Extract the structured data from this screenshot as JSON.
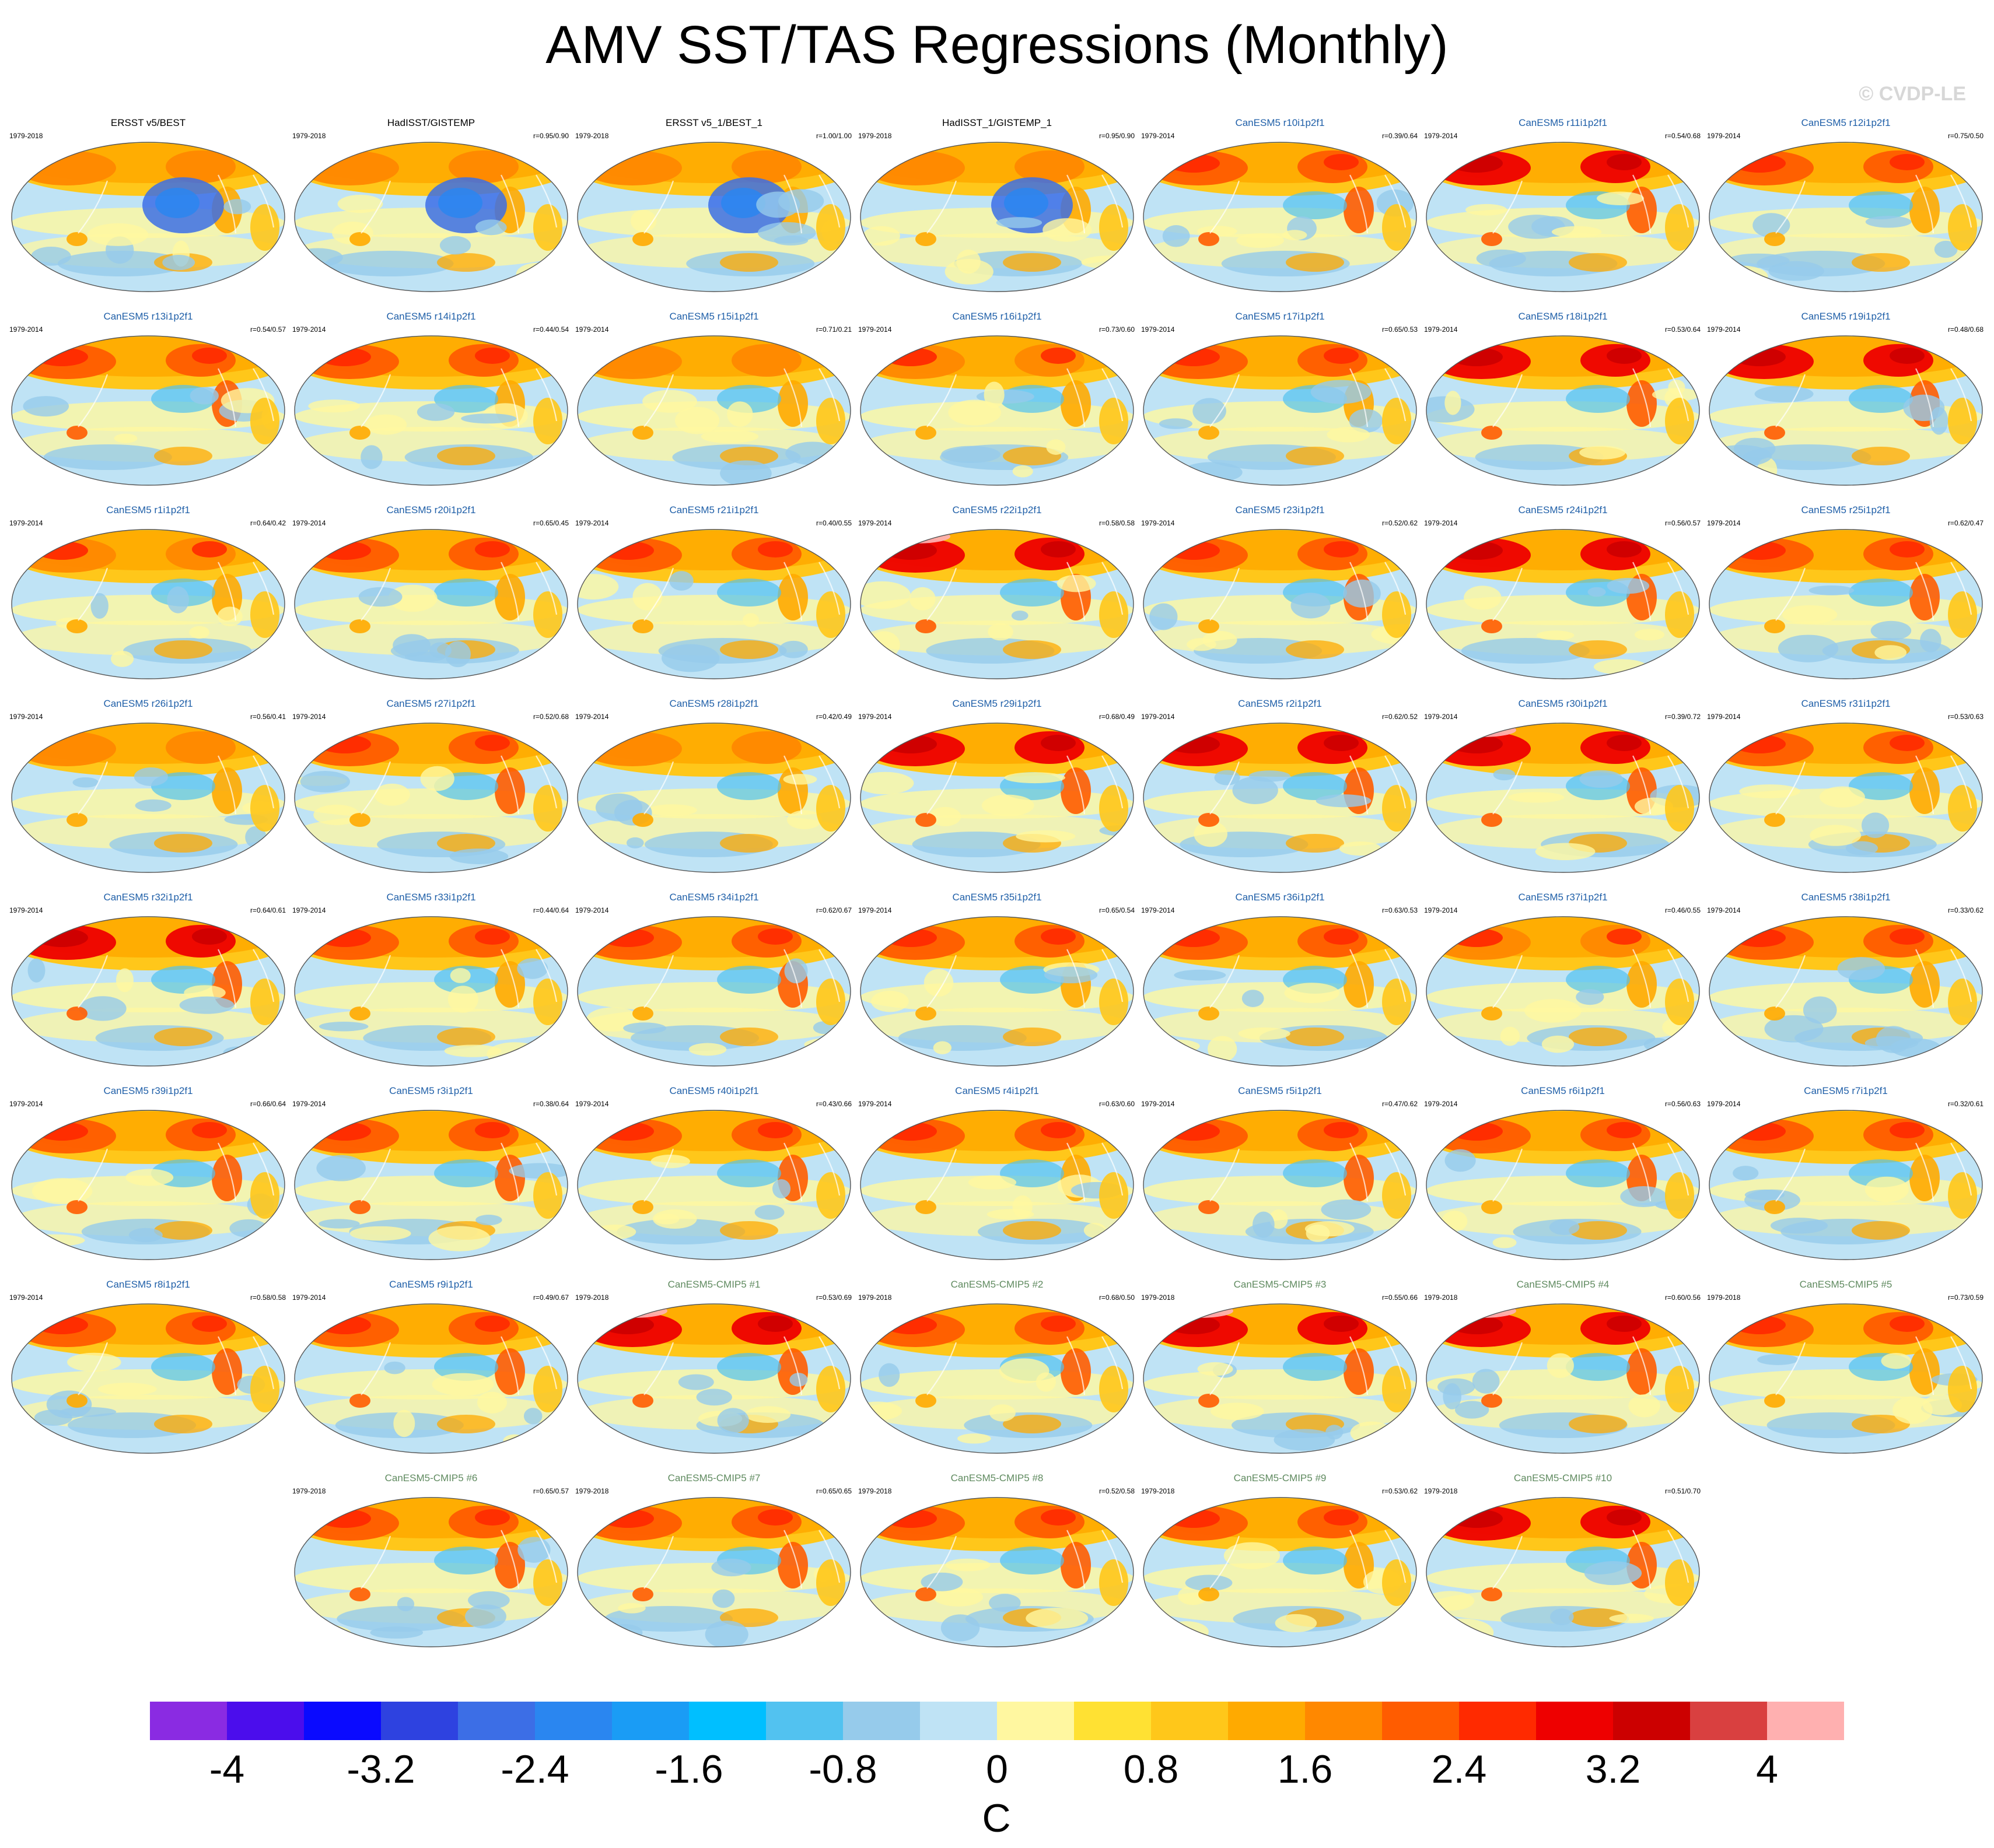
{
  "figure": {
    "title": "AMV SST/TAS Regressions (Monthly)",
    "copyright": "© CVDP-LE"
  },
  "colors": {
    "obs_title": "#000000",
    "model_title": "#1f5fa8",
    "cmip_title": "#5f8a5f"
  },
  "colorbar": {
    "unit": "C",
    "tick_labels": [
      "-4",
      "-3.2",
      "-2.4",
      "-1.6",
      "-0.8",
      "0",
      "0.8",
      "1.6",
      "2.4",
      "3.2",
      "4"
    ],
    "colors": [
      "#8a2be2",
      "#4b0dec",
      "#0a0aff",
      "#2e42e0",
      "#3c6ee6",
      "#2a86f0",
      "#1a9cf5",
      "#00bfff",
      "#52c2f0",
      "#96cbeb",
      "#bfe3f5",
      "#fff7a0",
      "#ffe133",
      "#ffc71a",
      "#ffaa00",
      "#ff8800",
      "#ff5c00",
      "#ff2a00",
      "#ee0000",
      "#cc0000",
      "#d94040",
      "#ffb0b0"
    ]
  },
  "chart_data": {
    "type": "heatmap",
    "title": "AMV SST/TAS Regressions (Monthly)",
    "unit": "C",
    "color_range": [
      -4.4,
      4.4
    ],
    "color_step": 0.4,
    "panels": [
      {
        "title": "ERSST v5/BEST",
        "years": "1979-2018",
        "corr": "",
        "kind": "obs",
        "w": 0.25
      },
      {
        "title": "HadISST/GISTEMP",
        "years": "1979-2018",
        "corr": "r=0.95/0.90",
        "kind": "obs",
        "w": 0.2
      },
      {
        "title": "ERSST v5_1/BEST_1",
        "years": "1979-2018",
        "corr": "r=1.00/1.00",
        "kind": "obs",
        "w": 0.25
      },
      {
        "title": "HadISST_1/GISTEMP_1",
        "years": "1979-2018",
        "corr": "r=0.95/0.90",
        "kind": "obs",
        "w": 0.2
      },
      {
        "title": "CanESM5 r10i1p2f1",
        "years": "1979-2014",
        "corr": "r=0.39/0.64",
        "kind": "model",
        "w": 0.85
      },
      {
        "title": "CanESM5 r11i1p2f1",
        "years": "1979-2014",
        "corr": "r=0.54/0.68",
        "kind": "model",
        "w": 0.9
      },
      {
        "title": "CanESM5 r12i1p2f1",
        "years": "1979-2014",
        "corr": "r=0.75/0.50",
        "kind": "model",
        "w": 0.75
      },
      {
        "title": "CanESM5 r13i1p2f1",
        "years": "1979-2014",
        "corr": "r=0.54/0.57",
        "kind": "model",
        "w": 0.85
      },
      {
        "title": "CanESM5 r14i1p2f1",
        "years": "1979-2014",
        "corr": "r=0.44/0.54",
        "kind": "model",
        "w": 0.7
      },
      {
        "title": "CanESM5 r15i1p2f1",
        "years": "1979-2014",
        "corr": "r=0.71/0.21",
        "kind": "model",
        "w": 0.45
      },
      {
        "title": "CanESM5 r16i1p2f1",
        "years": "1979-2014",
        "corr": "r=0.73/0.60",
        "kind": "model",
        "w": 0.65
      },
      {
        "title": "CanESM5 r17i1p2f1",
        "years": "1979-2014",
        "corr": "r=0.65/0.53",
        "kind": "model",
        "w": 0.7
      },
      {
        "title": "CanESM5 r18i1p2f1",
        "years": "1979-2014",
        "corr": "r=0.53/0.64",
        "kind": "model",
        "w": 0.9
      },
      {
        "title": "CanESM5 r19i1p2f1",
        "years": "1979-2014",
        "corr": "r=0.48/0.68",
        "kind": "model",
        "w": 0.9
      },
      {
        "title": "CanESM5 r1i1p2f1",
        "years": "1979-2014",
        "corr": "r=0.64/0.42",
        "kind": "model",
        "w": 0.65
      },
      {
        "title": "CanESM5 r20i1p2f1",
        "years": "1979-2014",
        "corr": "r=0.65/0.45",
        "kind": "model",
        "w": 0.75
      },
      {
        "title": "CanESM5 r21i1p2f1",
        "years": "1979-2014",
        "corr": "r=0.40/0.55",
        "kind": "model",
        "w": 0.7
      },
      {
        "title": "CanESM5 r22i1p2f1",
        "years": "1979-2014",
        "corr": "r=0.58/0.58",
        "kind": "model",
        "w": 0.95
      },
      {
        "title": "CanESM5 r23i1p2f1",
        "years": "1979-2014",
        "corr": "r=0.52/0.62",
        "kind": "model",
        "w": 0.8
      },
      {
        "title": "CanESM5 r24i1p2f1",
        "years": "1979-2014",
        "corr": "r=0.56/0.57",
        "kind": "model",
        "w": 0.9
      },
      {
        "title": "CanESM5 r25i1p2f1",
        "years": "1979-2014",
        "corr": "r=0.62/0.47",
        "kind": "model",
        "w": 0.8
      },
      {
        "title": "CanESM5 r26i1p2f1",
        "years": "1979-2014",
        "corr": "r=0.56/0.41",
        "kind": "model",
        "w": 0.6
      },
      {
        "title": "CanESM5 r27i1p2f1",
        "years": "1979-2014",
        "corr": "r=0.52/0.68",
        "kind": "model",
        "w": 0.8
      },
      {
        "title": "CanESM5 r28i1p2f1",
        "years": "1979-2014",
        "corr": "r=0.42/0.49",
        "kind": "model",
        "w": 0.55
      },
      {
        "title": "CanESM5 r29i1p2f1",
        "years": "1979-2014",
        "corr": "r=0.68/0.49",
        "kind": "model",
        "w": 0.9
      },
      {
        "title": "CanESM5 r2i1p2f1",
        "years": "1979-2014",
        "corr": "r=0.62/0.52",
        "kind": "model",
        "w": 0.9
      },
      {
        "title": "CanESM5 r30i1p2f1",
        "years": "1979-2014",
        "corr": "r=0.39/0.72",
        "kind": "model",
        "w": 0.95
      },
      {
        "title": "CanESM5 r31i1p2f1",
        "years": "1979-2014",
        "corr": "r=0.53/0.63",
        "kind": "model",
        "w": 0.7
      },
      {
        "title": "CanESM5 r32i1p2f1",
        "years": "1979-2014",
        "corr": "r=0.64/0.61",
        "kind": "model",
        "w": 0.9
      },
      {
        "title": "CanESM5 r33i1p2f1",
        "years": "1979-2014",
        "corr": "r=0.44/0.64",
        "kind": "model",
        "w": 0.75
      },
      {
        "title": "CanESM5 r34i1p2f1",
        "years": "1979-2014",
        "corr": "r=0.62/0.67",
        "kind": "model",
        "w": 0.8
      },
      {
        "title": "CanESM5 r35i1p2f1",
        "years": "1979-2014",
        "corr": "r=0.65/0.54",
        "kind": "model",
        "w": 0.75
      },
      {
        "title": "CanESM5 r36i1p2f1",
        "years": "1979-2014",
        "corr": "r=0.63/0.53",
        "kind": "model",
        "w": 0.75
      },
      {
        "title": "CanESM5 r37i1p2f1",
        "years": "1979-2014",
        "corr": "r=0.46/0.55",
        "kind": "model",
        "w": 0.65
      },
      {
        "title": "CanESM5 r38i1p2f1",
        "years": "1979-2014",
        "corr": "r=0.33/0.62",
        "kind": "model",
        "w": 0.75
      },
      {
        "title": "CanESM5 r39i1p2f1",
        "years": "1979-2014",
        "corr": "r=0.66/0.64",
        "kind": "model",
        "w": 0.85
      },
      {
        "title": "CanESM5 r3i1p2f1",
        "years": "1979-2014",
        "corr": "r=0.38/0.64",
        "kind": "model",
        "w": 0.85
      },
      {
        "title": "CanESM5 r40i1p2f1",
        "years": "1979-2014",
        "corr": "r=0.43/0.66",
        "kind": "model",
        "w": 0.8
      },
      {
        "title": "CanESM5 r4i1p2f1",
        "years": "1979-2014",
        "corr": "r=0.63/0.60",
        "kind": "model",
        "w": 0.7
      },
      {
        "title": "CanESM5 r5i1p2f1",
        "years": "1979-2014",
        "corr": "r=0.47/0.62",
        "kind": "model",
        "w": 0.85
      },
      {
        "title": "CanESM5 r6i1p2f1",
        "years": "1979-2014",
        "corr": "r=0.56/0.63",
        "kind": "model",
        "w": 0.8
      },
      {
        "title": "CanESM5 r7i1p2f1",
        "years": "1979-2014",
        "corr": "r=0.32/0.61",
        "kind": "model",
        "w": 0.75
      },
      {
        "title": "CanESM5 r8i1p2f1",
        "years": "1979-2014",
        "corr": "r=0.58/0.58",
        "kind": "model",
        "w": 0.8
      },
      {
        "title": "CanESM5 r9i1p2f1",
        "years": "1979-2014",
        "corr": "r=0.49/0.67",
        "kind": "model",
        "w": 0.85
      },
      {
        "title": "CanESM5-CMIP5 #1",
        "years": "1979-2018",
        "corr": "r=0.53/0.69",
        "kind": "cmip",
        "w": 0.95
      },
      {
        "title": "CanESM5-CMIP5 #2",
        "years": "1979-2018",
        "corr": "r=0.68/0.50",
        "kind": "cmip",
        "w": 0.8
      },
      {
        "title": "CanESM5-CMIP5 #3",
        "years": "1979-2018",
        "corr": "r=0.55/0.66",
        "kind": "cmip",
        "w": 1.0
      },
      {
        "title": "CanESM5-CMIP5 #4",
        "years": "1979-2018",
        "corr": "r=0.60/0.56",
        "kind": "cmip",
        "w": 0.95
      },
      {
        "title": "CanESM5-CMIP5 #5",
        "years": "1979-2018",
        "corr": "r=0.73/0.59",
        "kind": "cmip",
        "w": 0.75
      },
      {
        "title": "CanESM5-CMIP5 #6",
        "years": "1979-2018",
        "corr": "r=0.65/0.57",
        "kind": "cmip",
        "w": 0.85
      },
      {
        "title": "CanESM5-CMIP5 #7",
        "years": "1979-2018",
        "corr": "r=0.65/0.65",
        "kind": "cmip",
        "w": 0.85
      },
      {
        "title": "CanESM5-CMIP5 #8",
        "years": "1979-2018",
        "corr": "r=0.52/0.58",
        "kind": "cmip",
        "w": 0.85
      },
      {
        "title": "CanESM5-CMIP5 #9",
        "years": "1979-2018",
        "corr": "r=0.53/0.62",
        "kind": "cmip",
        "w": 0.7
      },
      {
        "title": "CanESM5-CMIP5 #10",
        "years": "1979-2018",
        "corr": "r=0.51/0.70",
        "kind": "cmip",
        "w": 0.9
      }
    ]
  }
}
